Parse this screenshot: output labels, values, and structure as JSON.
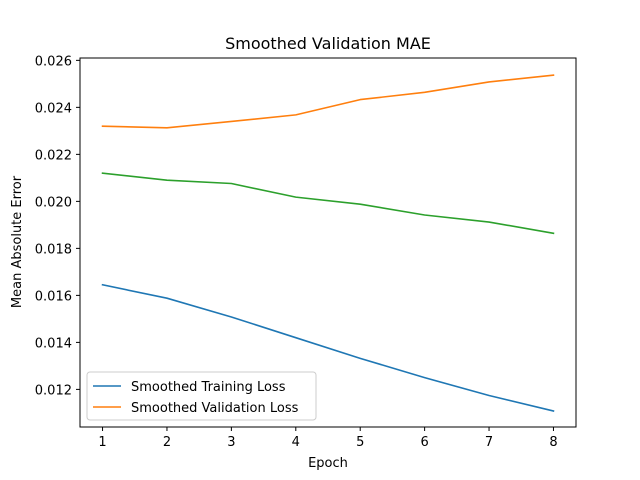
{
  "chart_data": {
    "type": "line",
    "title": "Smoothed Validation MAE",
    "xlabel": "Epoch",
    "ylabel": "Mean Absolute Error",
    "x": [
      1,
      2,
      3,
      4,
      5,
      6,
      7,
      8
    ],
    "xticks": [
      "1",
      "2",
      "3",
      "4",
      "5",
      "6",
      "7",
      "8"
    ],
    "yticks": [
      "0.012",
      "0.014",
      "0.016",
      "0.018",
      "0.020",
      "0.022",
      "0.024",
      "0.026"
    ],
    "xlim": [
      0.65,
      8.35
    ],
    "ylim": [
      0.0104,
      0.0261
    ],
    "grid": false,
    "legend_position": "lower-left",
    "series": [
      {
        "name": "Smoothed Training Loss",
        "color": "#1f77b4",
        "values": [
          0.01645,
          0.01588,
          0.01508,
          0.0142,
          0.01332,
          0.0125,
          0.01174,
          0.01108
        ]
      },
      {
        "name": "Smoothed Validation Loss",
        "color": "#ff7f0e",
        "values": [
          0.0232,
          0.02313,
          0.0234,
          0.02368,
          0.02433,
          0.02464,
          0.02508,
          0.02537
        ]
      },
      {
        "name": "",
        "color": "#2ca02c",
        "values": [
          0.0212,
          0.0209,
          0.02076,
          0.02018,
          0.01988,
          0.01942,
          0.01912,
          0.01864
        ]
      }
    ]
  }
}
